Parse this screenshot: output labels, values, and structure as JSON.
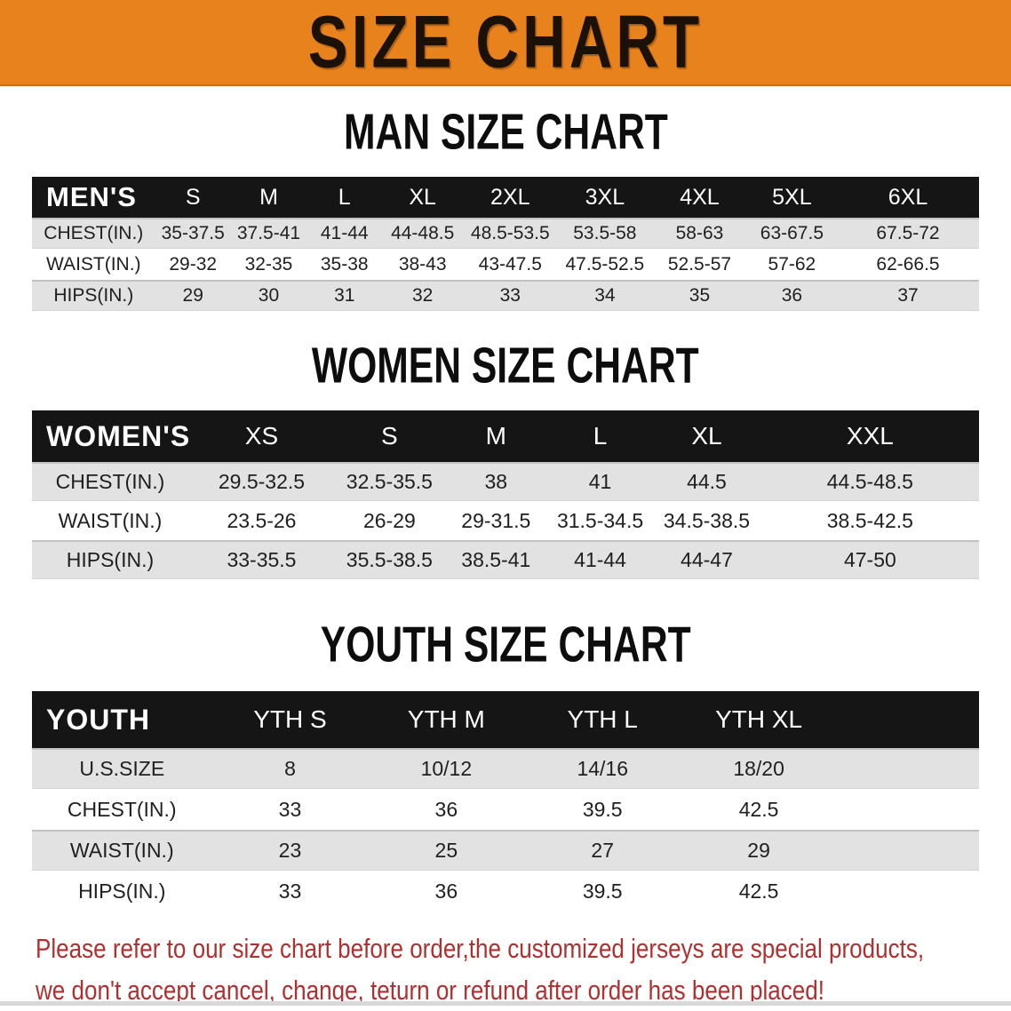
{
  "banner": {
    "title": "SIZE CHART",
    "background_color": "#E8821C",
    "title_color": "#1B1106"
  },
  "chart_data": [
    {
      "type": "table",
      "title": "MAN SIZE CHART",
      "group_label": "MEN'S",
      "columns": [
        "S",
        "M",
        "L",
        "XL",
        "2XL",
        "3XL",
        "4XL",
        "5XL",
        "6XL"
      ],
      "rows": [
        {
          "label": "CHEST(IN.)",
          "values": [
            "35-37.5",
            "37.5-41",
            "41-44",
            "44-48.5",
            "48.5-53.5",
            "53.5-58",
            "58-63",
            "63-67.5",
            "67.5-72"
          ]
        },
        {
          "label": "WAIST(IN.)",
          "values": [
            "29-32",
            "32-35",
            "35-38",
            "38-43",
            "43-47.5",
            "47.5-52.5",
            "52.5-57",
            "57-62",
            "62-66.5"
          ]
        },
        {
          "label": "HIPS(IN.)",
          "values": [
            "29",
            "30",
            "31",
            "32",
            "33",
            "34",
            "35",
            "36",
            "37"
          ]
        }
      ]
    },
    {
      "type": "table",
      "title": "WOMEN SIZE CHART",
      "group_label": "WOMEN'S",
      "columns": [
        "XS",
        "S",
        "M",
        "L",
        "XL",
        "XXL"
      ],
      "rows": [
        {
          "label": "CHEST(IN.)",
          "values": [
            "29.5-32.5",
            "32.5-35.5",
            "38",
            "41",
            "44.5",
            "44.5-48.5"
          ]
        },
        {
          "label": "WAIST(IN.)",
          "values": [
            "23.5-26",
            "26-29",
            "29-31.5",
            "31.5-34.5",
            "34.5-38.5",
            "38.5-42.5"
          ]
        },
        {
          "label": "HIPS(IN.)",
          "values": [
            "33-35.5",
            "35.5-38.5",
            "38.5-41",
            "41-44",
            "44-47",
            "47-50"
          ]
        }
      ]
    },
    {
      "type": "table",
      "title": "YOUTH SIZE CHART",
      "group_label": "YOUTH",
      "columns": [
        "YTH S",
        "YTH M",
        "YTH L",
        "YTH XL"
      ],
      "rows": [
        {
          "label": "U.S.SIZE",
          "values": [
            "8",
            "10/12",
            "14/16",
            "18/20"
          ]
        },
        {
          "label": "CHEST(IN.)",
          "values": [
            "33",
            "36",
            "39.5",
            "42.5"
          ]
        },
        {
          "label": "WAIST(IN.)",
          "values": [
            "23",
            "25",
            "27",
            "29"
          ]
        },
        {
          "label": "HIPS(IN.)",
          "values": [
            "33",
            "36",
            "39.5",
            "42.5"
          ]
        }
      ]
    }
  ],
  "disclaimer": {
    "line1": "Please refer to our size chart before order,the customized jerseys are special products,",
    "line2": "we don't accept cancel, change, teturn or refund after order has been placed!",
    "color": "#B03030"
  }
}
